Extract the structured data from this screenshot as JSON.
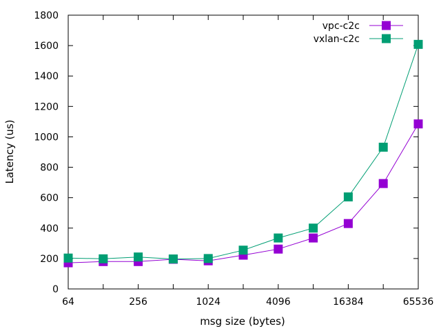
{
  "chart_data": {
    "type": "line",
    "title": "",
    "xlabel": "msg size (bytes)",
    "ylabel": "Latency (us)",
    "x_scale": "log2",
    "xlim": [
      64,
      65536
    ],
    "ylim": [
      0,
      1800
    ],
    "x_ticks": [
      "64",
      "256",
      "1024",
      "4096",
      "16384",
      "65536"
    ],
    "y_ticks": [
      "0",
      "200",
      "400",
      "600",
      "800",
      "1000",
      "1200",
      "1400",
      "1600",
      "1800"
    ],
    "grid": false,
    "legend_position": "top-right",
    "x": [
      64,
      128,
      256,
      512,
      1024,
      2048,
      4096,
      8192,
      16384,
      32768,
      65536
    ],
    "series": [
      {
        "name": "vpc-c2c",
        "color": "#9400d3",
        "marker": "square",
        "values": [
          172,
          180,
          180,
          195,
          185,
          222,
          262,
          335,
          430,
          693,
          1085
        ]
      },
      {
        "name": "vxlan-c2c",
        "color": "#009e73",
        "marker": "square",
        "values": [
          203,
          198,
          210,
          197,
          200,
          255,
          335,
          400,
          605,
          932,
          1608
        ]
      }
    ]
  }
}
